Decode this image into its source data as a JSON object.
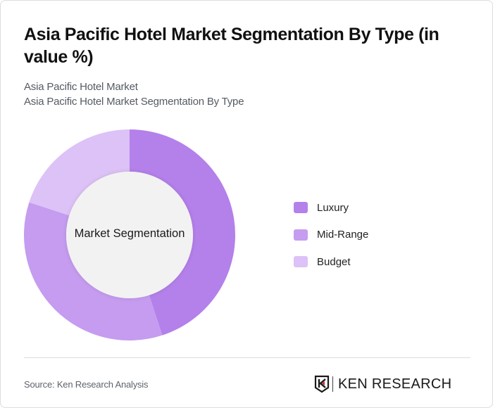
{
  "header": {
    "title": "Asia Pacific Hotel Market Segmentation By Type (in value %)",
    "subtitle_1": "Asia Pacific Hotel Market",
    "subtitle_2": "Asia Pacific Hotel Market Segmentation By Type"
  },
  "chart": {
    "center_label": "Market Segmentation"
  },
  "legend": [
    {
      "label": "Luxury",
      "color": "#b480ea"
    },
    {
      "label": "Mid-Range",
      "color": "#c59cef"
    },
    {
      "label": "Budget",
      "color": "#dcc2f6"
    }
  ],
  "footer": {
    "source": "Source: Ken Research Analysis",
    "logo_text": "KEN RESEARCH"
  },
  "chart_data": {
    "type": "pie",
    "subtype": "donut",
    "title": "Asia Pacific Hotel Market Segmentation By Type (in value %)",
    "subtitle": "Asia Pacific Hotel Market / Asia Pacific Hotel Market Segmentation By Type",
    "center_label": "Market Segmentation",
    "categories": [
      "Luxury",
      "Mid-Range",
      "Budget"
    ],
    "values": [
      45,
      35,
      20
    ],
    "colors": [
      "#b480ea",
      "#c59cef",
      "#dcc2f6"
    ],
    "unit": "%",
    "legend_position": "right",
    "start_angle": "top, clockwise",
    "source": "Source: Ken Research Analysis"
  }
}
